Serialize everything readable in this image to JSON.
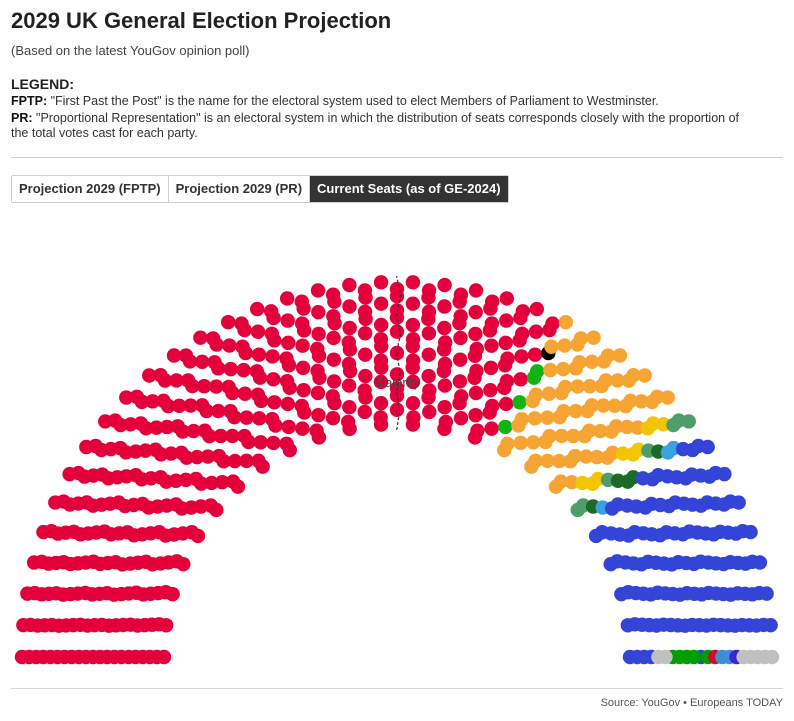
{
  "header": {
    "title": "2029 UK General Election Projection",
    "subtitle": "(Based on the latest YouGov opinion poll)"
  },
  "legend": {
    "heading": "LEGEND:",
    "fptp_term": "FPTP:",
    "fptp_text": "\"First Past the Post\" is the name for the electoral system used to elect Members of Parliament to Westminster.",
    "pr_term": "PR:",
    "pr_text": "\"Proportional Representation\" is an electoral system in which the distribution of seats corresponds closely with the proportion of the total votes cast for each party."
  },
  "tabs": [
    {
      "label": "Projection 2029 (FPTP)",
      "active": false
    },
    {
      "label": "Projection 2029 (PR)",
      "active": false
    },
    {
      "label": "Current Seats (as of GE-2024)",
      "active": true
    }
  ],
  "chart_data": {
    "type": "parliament",
    "total_seats": 650,
    "majority_label": "Majority",
    "majority_threshold": 326,
    "parties": [
      {
        "seats": 412,
        "color": "#e4003b"
      },
      {
        "seats": 4,
        "color": "#12b312"
      },
      {
        "seats": 1,
        "color": "#000000"
      },
      {
        "seats": 72,
        "color": "#f6a535"
      },
      {
        "seats": 9,
        "color": "#f2c500"
      },
      {
        "seats": 7,
        "color": "#4f9d69"
      },
      {
        "seats": 5,
        "color": "#1c6b25"
      },
      {
        "seats": 3,
        "color": "#3aa0e0"
      },
      {
        "seats": 121,
        "color": "#3344d6"
      },
      {
        "seats": 5,
        "color": "#009e00"
      },
      {
        "seats": 1,
        "color": "#c8102e"
      },
      {
        "seats": 2,
        "color": "#3d8fd1"
      },
      {
        "seats": 1,
        "color": "#3b25d6"
      },
      {
        "seats": 6,
        "color": "#c0c0c0"
      },
      {
        "seats": 1,
        "color": "#c0c0c0"
      }
    ]
  },
  "footer": {
    "source": "Source: YouGov • Europeans TODAY"
  }
}
